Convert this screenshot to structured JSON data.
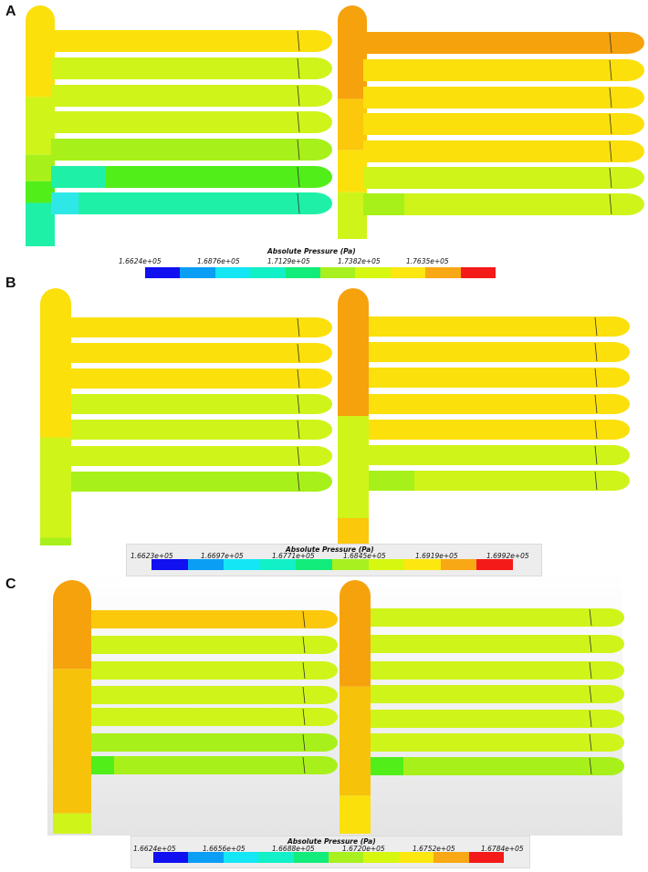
{
  "panels": [
    {
      "letter": "A",
      "legend": {
        "title": "Absolute Pressure (Pa)",
        "ticks": [
          "1.6624e+05",
          "1.6876e+05",
          "1.7129e+05",
          "1.7382e+05",
          "1.7635e+05"
        ]
      }
    },
    {
      "letter": "B",
      "legend": {
        "title": "Absolute Pressure (Pa)",
        "ticks": [
          "1.6623e+05",
          "1.6697e+05",
          "1.6771e+05",
          "1.6845e+05",
          "1.6919e+05",
          "1.6992e+05"
        ]
      }
    },
    {
      "letter": "C",
      "legend": {
        "title": "Absolute Pressure (Pa)",
        "ticks": [
          "1.6624e+05",
          "1.6656e+05",
          "1.6688e+05",
          "1.6720e+05",
          "1.6752e+05",
          "1.6784e+05"
        ]
      }
    }
  ],
  "colormap": [
    "#1010f0",
    "#0a9ef5",
    "#14e6f5",
    "#12f0c8",
    "#12ec7a",
    "#a8f020",
    "#d6f710",
    "#fde710",
    "#f8a814",
    "#f41a1a"
  ],
  "colors": {
    "orange": "#f6a20c",
    "yellow_orange": "#fbc80c",
    "yellow": "#fbe00c",
    "yellow_green": "#cff41a",
    "lime": "#a8f01a",
    "green": "#52ee1a",
    "teal": "#1ff0a8",
    "cyan": "#2ee8e8",
    "gold": "#f6c20a"
  }
}
